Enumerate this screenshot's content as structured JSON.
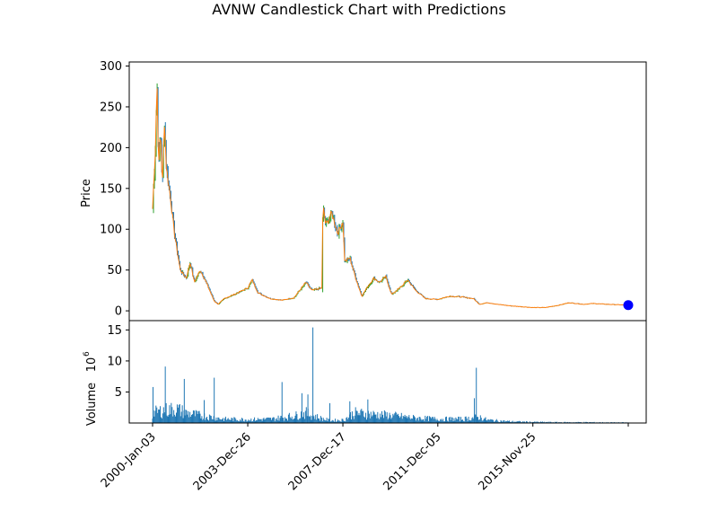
{
  "chart_data": {
    "type": "candlestick",
    "title": "AVNW Candlestick Chart with Predictions",
    "price_panel": {
      "ylabel": "Price",
      "ylim": [
        -12,
        305
      ],
      "yticks": [
        0,
        50,
        100,
        150,
        200,
        250,
        300
      ],
      "candle_up_color": "#2ca02c",
      "candle_down_color": "#1f77b4",
      "prediction_line_color": "#ff7f0e",
      "prediction_point_color": "#0000ff",
      "prediction_point": {
        "date": "2019-Nov-20",
        "value": 7
      },
      "approx_close_series": [
        {
          "date": "2000-Jan-03",
          "value": 125
        },
        {
          "date": "2000-Feb-15",
          "value": 200
        },
        {
          "date": "2000-Mar-10",
          "value": 285
        },
        {
          "date": "2000-Apr-05",
          "value": 170
        },
        {
          "date": "2000-May-01",
          "value": 225
        },
        {
          "date": "2000-Jun-01",
          "value": 150
        },
        {
          "date": "2000-Jul-01",
          "value": 235
        },
        {
          "date": "2000-Aug-01",
          "value": 175
        },
        {
          "date": "2000-Oct-01",
          "value": 140
        },
        {
          "date": "2000-Dec-01",
          "value": 95
        },
        {
          "date": "2001-Mar-01",
          "value": 50
        },
        {
          "date": "2001-Jun-01",
          "value": 40
        },
        {
          "date": "2001-Aug-01",
          "value": 60
        },
        {
          "date": "2001-Oct-01",
          "value": 35
        },
        {
          "date": "2002-Jan-01",
          "value": 50
        },
        {
          "date": "2002-Apr-01",
          "value": 35
        },
        {
          "date": "2002-Aug-01",
          "value": 12
        },
        {
          "date": "2002-Oct-01",
          "value": 8
        },
        {
          "date": "2003-Jan-01",
          "value": 15
        },
        {
          "date": "2003-Jun-01",
          "value": 20
        },
        {
          "date": "2003-Dec-26",
          "value": 28
        },
        {
          "date": "2004-Mar-01",
          "value": 38
        },
        {
          "date": "2004-Jun-01",
          "value": 22
        },
        {
          "date": "2004-Dec-01",
          "value": 15
        },
        {
          "date": "2005-Jun-01",
          "value": 13
        },
        {
          "date": "2005-Dec-01",
          "value": 16
        },
        {
          "date": "2006-Jun-01",
          "value": 35
        },
        {
          "date": "2006-Sep-01",
          "value": 25
        },
        {
          "date": "2007-Feb-01",
          "value": 28
        },
        {
          "date": "2007-Feb-15",
          "value": 130
        },
        {
          "date": "2007-Apr-01",
          "value": 105
        },
        {
          "date": "2007-Jul-01",
          "value": 120
        },
        {
          "date": "2007-Oct-01",
          "value": 95
        },
        {
          "date": "2007-Dec-17",
          "value": 110
        },
        {
          "date": "2008-Jan-15",
          "value": 60
        },
        {
          "date": "2008-Apr-01",
          "value": 65
        },
        {
          "date": "2008-Jul-01",
          "value": 40
        },
        {
          "date": "2008-Oct-01",
          "value": 18
        },
        {
          "date": "2009-Jan-01",
          "value": 30
        },
        {
          "date": "2009-Apr-01",
          "value": 40
        },
        {
          "date": "2009-Jul-01",
          "value": 35
        },
        {
          "date": "2009-Oct-01",
          "value": 42
        },
        {
          "date": "2010-Jan-01",
          "value": 20
        },
        {
          "date": "2010-Jun-01",
          "value": 30
        },
        {
          "date": "2010-Sep-01",
          "value": 38
        },
        {
          "date": "2011-Jan-01",
          "value": 25
        },
        {
          "date": "2011-Jun-01",
          "value": 15
        },
        {
          "date": "2011-Dec-05",
          "value": 14
        },
        {
          "date": "2012-Jun-01",
          "value": 18
        },
        {
          "date": "2012-Dec-01",
          "value": 17
        },
        {
          "date": "2013-Jun-01",
          "value": 15
        },
        {
          "date": "2013-Sep-01",
          "value": 8
        },
        {
          "date": "2014-Jan-01",
          "value": 10
        },
        {
          "date": "2014-Jun-01",
          "value": 8
        },
        {
          "date": "2015-Jan-01",
          "value": 6
        },
        {
          "date": "2015-Nov-25",
          "value": 4
        },
        {
          "date": "2016-Jun-01",
          "value": 4
        },
        {
          "date": "2017-Jan-01",
          "value": 7
        },
        {
          "date": "2017-Jun-01",
          "value": 10
        },
        {
          "date": "2018-Jan-01",
          "value": 8
        },
        {
          "date": "2018-Jun-01",
          "value": 9
        },
        {
          "date": "2019-Jan-01",
          "value": 8
        },
        {
          "date": "2019-Nov-20",
          "value": 7
        }
      ]
    },
    "volume_panel": {
      "ylabel": "Volume",
      "ylabel_exponent": "10",
      "ylabel_exponent_power": "6",
      "ylim": [
        0,
        16.5
      ],
      "yticks": [
        5,
        10,
        15
      ],
      "bar_color": "#1f77b4",
      "volume_envelope": [
        {
          "date": "2000-Jan-03",
          "value": 2.0
        },
        {
          "date": "2000-Jun-01",
          "value": 2.5
        },
        {
          "date": "2001-Jan-01",
          "value": 2.8
        },
        {
          "date": "2001-Jun-01",
          "value": 2.0
        },
        {
          "date": "2002-Jan-01",
          "value": 1.5
        },
        {
          "date": "2003-Jan-01",
          "value": 0.8
        },
        {
          "date": "2004-Jan-01",
          "value": 0.7
        },
        {
          "date": "2005-Jan-01",
          "value": 0.8
        },
        {
          "date": "2006-Jan-01",
          "value": 1.5
        },
        {
          "date": "2006-Jun-01",
          "value": 2.0
        },
        {
          "date": "2007-Jan-01",
          "value": 1.0
        },
        {
          "date": "2007-Jun-01",
          "value": 0.5
        },
        {
          "date": "2008-Jan-01",
          "value": 0.6
        },
        {
          "date": "2008-Jun-01",
          "value": 2.0
        },
        {
          "date": "2009-Jan-01",
          "value": 1.8
        },
        {
          "date": "2010-Jan-01",
          "value": 1.5
        },
        {
          "date": "2011-Jan-01",
          "value": 1.0
        },
        {
          "date": "2012-Jan-01",
          "value": 0.8
        },
        {
          "date": "2013-Jan-01",
          "value": 0.8
        },
        {
          "date": "2013-Sep-01",
          "value": 1.2
        },
        {
          "date": "2014-Jan-01",
          "value": 0.6
        },
        {
          "date": "2015-Jan-01",
          "value": 0.3
        },
        {
          "date": "2016-Jan-01",
          "value": 0.2
        },
        {
          "date": "2017-Jan-01",
          "value": 0.15
        },
        {
          "date": "2018-Jan-01",
          "value": 0.15
        },
        {
          "date": "2019-Nov-20",
          "value": 0.1
        }
      ],
      "volume_spikes": [
        {
          "date": "2000-Jan-10",
          "value": 5.8
        },
        {
          "date": "2000-Jul-15",
          "value": 9.1
        },
        {
          "date": "2001-May-01",
          "value": 7.1
        },
        {
          "date": "2002-Mar-01",
          "value": 3.7
        },
        {
          "date": "2002-Aug-01",
          "value": 7.3
        },
        {
          "date": "2005-Jun-01",
          "value": 6.6
        },
        {
          "date": "2006-Apr-01",
          "value": 4.8
        },
        {
          "date": "2006-Jul-01",
          "value": 4.6
        },
        {
          "date": "2006-Sep-15",
          "value": 15.4
        },
        {
          "date": "2007-Jun-01",
          "value": 3.2
        },
        {
          "date": "2008-Apr-01",
          "value": 3.5
        },
        {
          "date": "2009-Jan-01",
          "value": 3.8
        },
        {
          "date": "2013-Jun-15",
          "value": 4.0
        },
        {
          "date": "2013-Jul-15",
          "value": 8.9
        }
      ]
    },
    "x_axis": {
      "start": "2000-Jan-03",
      "end": "2019-Nov-20",
      "tick_labels": [
        "2000-Jan-03",
        "2003-Dec-26",
        "2007-Dec-17",
        "2011-Dec-05",
        "2015-Nov-25",
        ""
      ],
      "tick_dates": [
        "2000-Jan-03",
        "2003-Dec-26",
        "2007-Dec-17",
        "2011-Dec-05",
        "2015-Nov-25",
        "2019-Nov-20"
      ]
    }
  }
}
